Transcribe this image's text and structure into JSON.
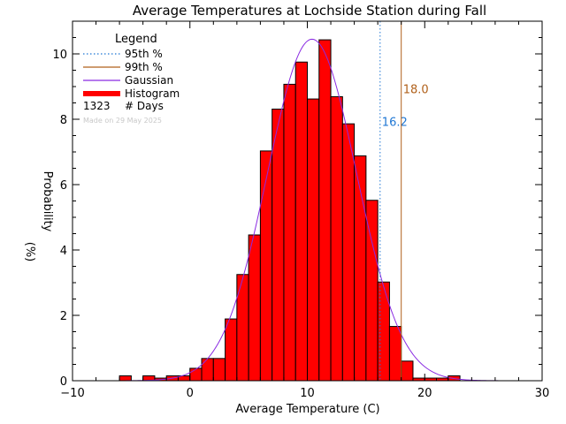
{
  "chart_data": {
    "type": "bar",
    "title": "Average Temperatures at Lochside Station during Fall",
    "xlabel": "Average Temperature (C)",
    "ylabel": "Probability",
    "ylabel_unit": "(%)",
    "xlim": [
      -10,
      30
    ],
    "ylim": [
      0,
      11
    ],
    "x_ticks": [
      -10,
      0,
      10,
      20,
      30
    ],
    "y_ticks": [
      0,
      2,
      4,
      6,
      8,
      10
    ],
    "bin_width": 1,
    "bins": [
      {
        "x0": -6,
        "value": 0.15
      },
      {
        "x0": -5,
        "value": 0.0
      },
      {
        "x0": -4,
        "value": 0.15
      },
      {
        "x0": -3,
        "value": 0.08
      },
      {
        "x0": -2,
        "value": 0.15
      },
      {
        "x0": -1,
        "value": 0.15
      },
      {
        "x0": 0,
        "value": 0.38
      },
      {
        "x0": 1,
        "value": 0.68
      },
      {
        "x0": 2,
        "value": 0.68
      },
      {
        "x0": 3,
        "value": 1.89
      },
      {
        "x0": 4,
        "value": 3.25
      },
      {
        "x0": 5,
        "value": 4.46
      },
      {
        "x0": 6,
        "value": 7.03
      },
      {
        "x0": 7,
        "value": 8.31
      },
      {
        "x0": 8,
        "value": 9.07
      },
      {
        "x0": 9,
        "value": 9.75
      },
      {
        "x0": 10,
        "value": 8.62
      },
      {
        "x0": 11,
        "value": 10.43
      },
      {
        "x0": 12,
        "value": 8.69
      },
      {
        "x0": 13,
        "value": 7.86
      },
      {
        "x0": 14,
        "value": 6.88
      },
      {
        "x0": 15,
        "value": 5.52
      },
      {
        "x0": 16,
        "value": 3.02
      },
      {
        "x0": 17,
        "value": 1.66
      },
      {
        "x0": 18,
        "value": 0.6
      },
      {
        "x0": 19,
        "value": 0.08
      },
      {
        "x0": 20,
        "value": 0.08
      },
      {
        "x0": 21,
        "value": 0.08
      },
      {
        "x0": 22,
        "value": 0.15
      }
    ],
    "gaussian": {
      "mean": 10.4,
      "sd": 3.8,
      "peak": 10.45
    },
    "percentiles": [
      {
        "name": "95th %",
        "value": 16.2,
        "label": "16.2",
        "color": "#1f77d4"
      },
      {
        "name": "99th %",
        "value": 18.0,
        "label": "18.0",
        "color": "#b0601a"
      }
    ],
    "legend": {
      "title": "Legend",
      "position": "top-left",
      "entries": [
        {
          "label": "95th %",
          "style": "dotted",
          "color": "#1f77d4"
        },
        {
          "label": "99th %",
          "style": "solid",
          "color": "#b0601a"
        },
        {
          "label": "Gaussian",
          "style": "solid",
          "color": "#8a2be2"
        },
        {
          "label": "Histogram",
          "style": "thick",
          "color": "#ff0000"
        }
      ],
      "days_count": "1323",
      "days_label": "# Days",
      "made_on": "Made on 29 May 2025"
    },
    "colors": {
      "histogram_fill": "#ff0000",
      "histogram_edge": "#000000",
      "gaussian": "#8a2be2",
      "axes": "#000000"
    }
  }
}
